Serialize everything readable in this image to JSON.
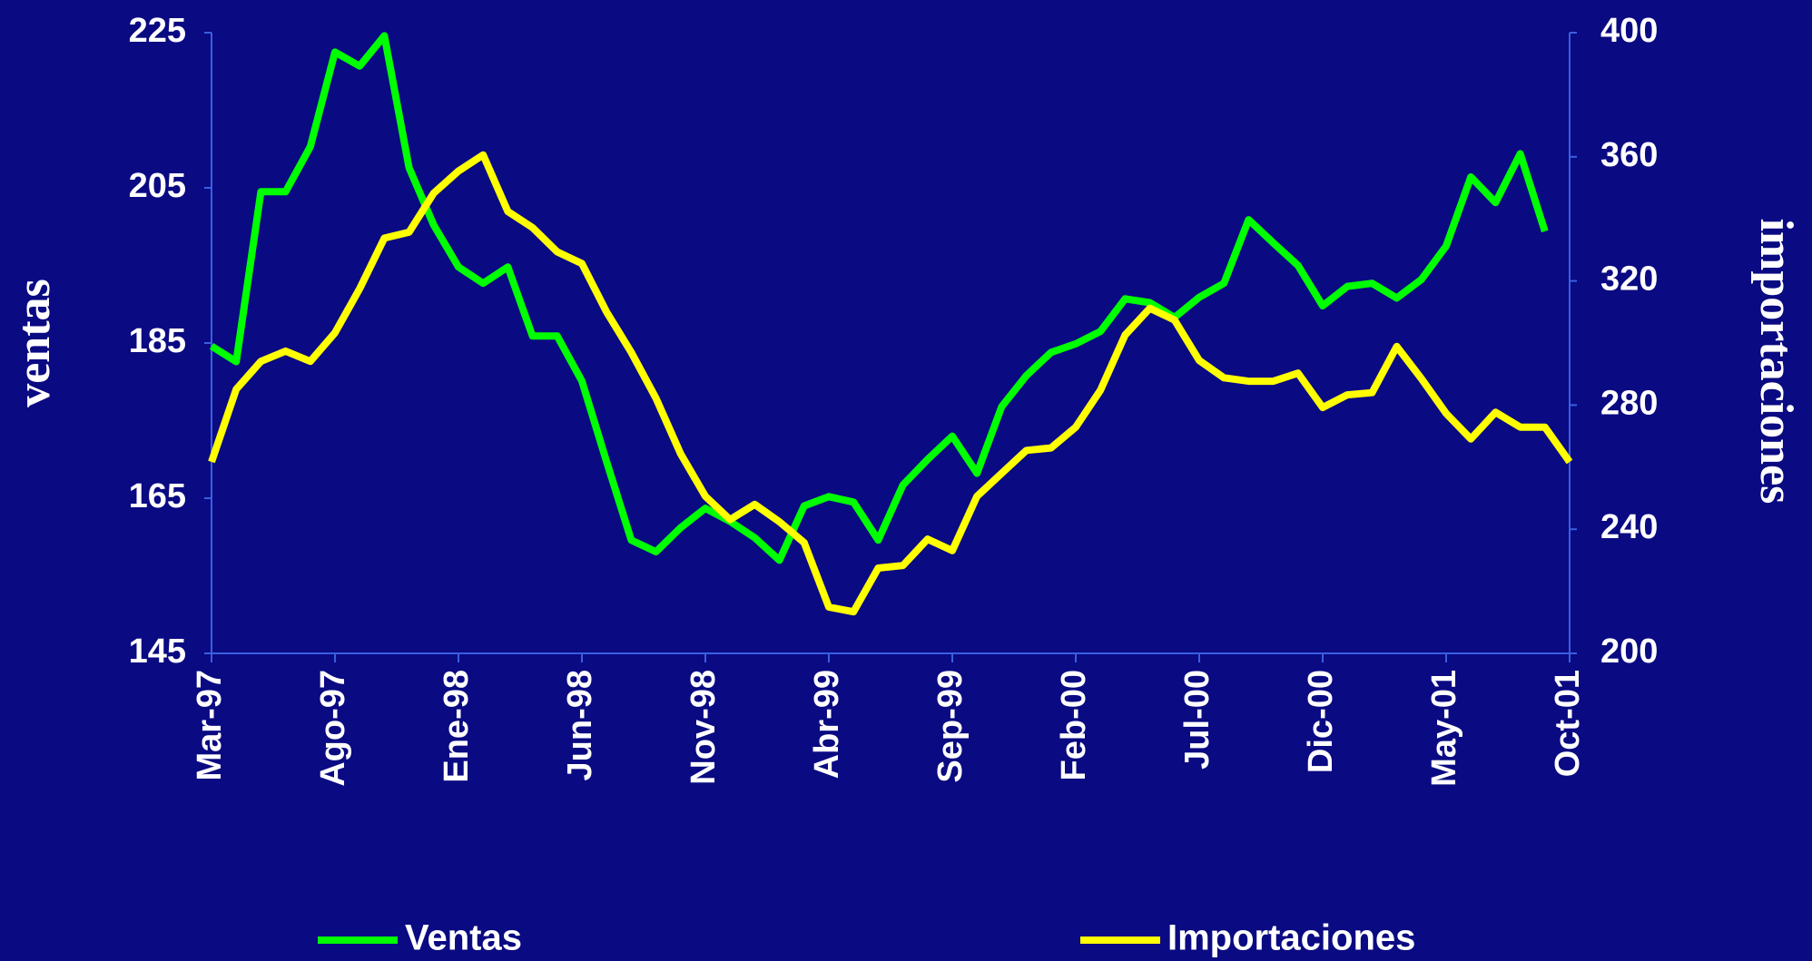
{
  "chart_data": {
    "type": "line",
    "y_label": "ventas",
    "y2_label": "importaciones",
    "categories": [
      "Mar-97",
      null,
      null,
      null,
      null,
      "Ago-97",
      null,
      null,
      null,
      null,
      "Ene-98",
      null,
      null,
      null,
      null,
      "Jun-98",
      null,
      null,
      null,
      null,
      "Nov-98",
      null,
      null,
      null,
      null,
      "Abr-99",
      null,
      null,
      null,
      null,
      "Sep-99",
      null,
      null,
      null,
      null,
      "Feb-00",
      null,
      null,
      null,
      null,
      "Jul-00",
      null,
      null,
      null,
      null,
      "Dic-00",
      null,
      null,
      null,
      null,
      "May-01",
      null,
      null,
      null,
      null,
      "Oct-01"
    ],
    "series": [
      {
        "name": "Ventas",
        "color": "#00ff00",
        "axis": "y",
        "values": [
          184.6,
          182.6,
          204.5,
          204.5,
          210.3,
          222.5,
          220.7,
          224.6,
          207.6,
          200.2,
          194.8,
          192.7,
          194.8,
          185.9,
          185.9,
          180.1,
          169.7,
          159.6,
          158.1,
          161.2,
          163.7,
          162.0,
          159.9,
          157.0,
          164.0,
          165.2,
          164.5,
          159.6,
          166.7,
          170.0,
          173.0,
          168.2,
          176.8,
          180.8,
          183.8,
          184.9,
          186.5,
          190.7,
          190.2,
          188.3,
          190.9,
          192.7,
          200.9,
          197.9,
          195.0,
          189.8,
          192.3,
          192.7,
          190.8,
          193.2,
          197.5,
          206.4,
          203.1,
          209.4,
          199.4,
          null
        ]
      },
      {
        "name": "Importaciones",
        "color": "#ffff00",
        "axis": "y2",
        "values": [
          261.7,
          285.1,
          294.1,
          297.4,
          294.1,
          303.3,
          317.5,
          333.8,
          335.7,
          348.3,
          355.4,
          360.6,
          342.4,
          337.2,
          329.4,
          325.6,
          310.0,
          297.0,
          282.2,
          264.3,
          250.6,
          243.1,
          248.0,
          242.4,
          235.7,
          214.9,
          213.4,
          227.5,
          228.3,
          236.8,
          233.1,
          250.6,
          258.0,
          265.4,
          266.2,
          272.9,
          284.8,
          302.6,
          311.2,
          307.4,
          294.4,
          288.8,
          287.7,
          287.7,
          290.3,
          279.2,
          283.3,
          284.0,
          298.9,
          288.5,
          277.3,
          269.1,
          277.7,
          272.9,
          272.9,
          261.7
        ]
      }
    ],
    "ylim": [
      145,
      225
    ],
    "yticks": [
      145,
      165,
      185,
      205,
      225
    ],
    "y2lim": [
      200,
      400
    ],
    "y2ticks": [
      200,
      240,
      280,
      320,
      360,
      400
    ],
    "grid": false,
    "legend": "bottom"
  }
}
